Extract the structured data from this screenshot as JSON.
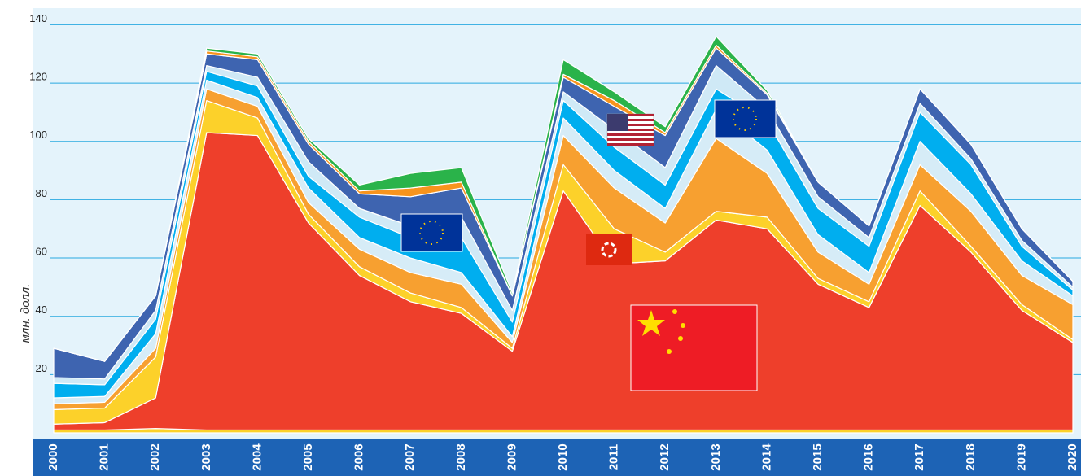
{
  "chart_data": {
    "type": "stacked_area",
    "ylabel": "млн. долл.",
    "categories": [
      "2000",
      "2001",
      "2002",
      "2003",
      "2004",
      "2005",
      "2006",
      "2007",
      "2008",
      "2009",
      "2010",
      "2011",
      "2012",
      "2013",
      "2014",
      "2015",
      "2016",
      "2017",
      "2018",
      "2019",
      "2020"
    ],
    "ylim": [
      0,
      145
    ],
    "yticks": [
      20,
      40,
      60,
      80,
      100,
      120,
      140
    ],
    "grid": true,
    "series": [
      {
        "color": "#fcd12a",
        "values": [
          1,
          1,
          1.5,
          1,
          1,
          1,
          1,
          1,
          1,
          1,
          1,
          1,
          1,
          1,
          1,
          1,
          1,
          1,
          1,
          1,
          1
        ]
      },
      {
        "color": "#ee3f2b",
        "values": [
          2,
          2.5,
          10.5,
          102,
          101,
          71,
          53,
          44,
          40,
          27,
          82,
          57,
          58,
          72,
          69,
          50,
          42,
          77,
          61,
          41,
          30
        ]
      },
      {
        "color": "#fcd12a",
        "values": [
          5,
          5,
          14,
          11,
          6,
          3,
          3,
          3,
          2,
          1,
          9,
          12,
          3,
          3,
          4,
          2,
          2,
          5,
          2,
          2,
          1
        ]
      },
      {
        "color": "#f7a030",
        "values": [
          2,
          2,
          3,
          4,
          4,
          4,
          6,
          7,
          8,
          2,
          10,
          14,
          10,
          25,
          15,
          9,
          6,
          9,
          12,
          10,
          12
        ]
      },
      {
        "color": "#d6ecf7",
        "values": [
          2,
          2,
          5,
          3,
          3,
          5,
          4,
          5,
          4,
          2,
          6,
          6,
          5,
          10,
          8,
          6,
          4,
          8,
          6,
          5,
          3
        ]
      },
      {
        "color": "#00aeef",
        "values": [
          5,
          4,
          5,
          3,
          4,
          4,
          7,
          7,
          12,
          5,
          6,
          8,
          8,
          7,
          10,
          9,
          9,
          10,
          10,
          5,
          2
        ]
      },
      {
        "color": "#cfe9f6",
        "values": [
          2,
          2,
          3,
          2,
          3,
          5,
          3,
          4,
          7,
          4,
          3,
          6,
          6,
          8,
          4,
          4,
          3,
          3,
          2,
          2,
          1
        ]
      },
      {
        "color": "#3e64b0",
        "values": [
          10,
          6,
          5,
          4,
          6,
          6,
          5,
          10,
          10,
          5,
          5,
          8,
          11,
          6,
          5,
          5,
          4,
          5,
          5,
          4,
          2
        ]
      },
      {
        "color": "#f7941d",
        "values": [
          0,
          0,
          0,
          1,
          1,
          1,
          1,
          3,
          2,
          0,
          1,
          2,
          1,
          1,
          0.5,
          0,
          0,
          0,
          0,
          0,
          0
        ]
      },
      {
        "color": "#2ab34a",
        "values": [
          0,
          0,
          0,
          1,
          1,
          1,
          2,
          5,
          5,
          1,
          5,
          3,
          2,
          3,
          1,
          0,
          0,
          0,
          0,
          0,
          0
        ]
      }
    ]
  }
}
